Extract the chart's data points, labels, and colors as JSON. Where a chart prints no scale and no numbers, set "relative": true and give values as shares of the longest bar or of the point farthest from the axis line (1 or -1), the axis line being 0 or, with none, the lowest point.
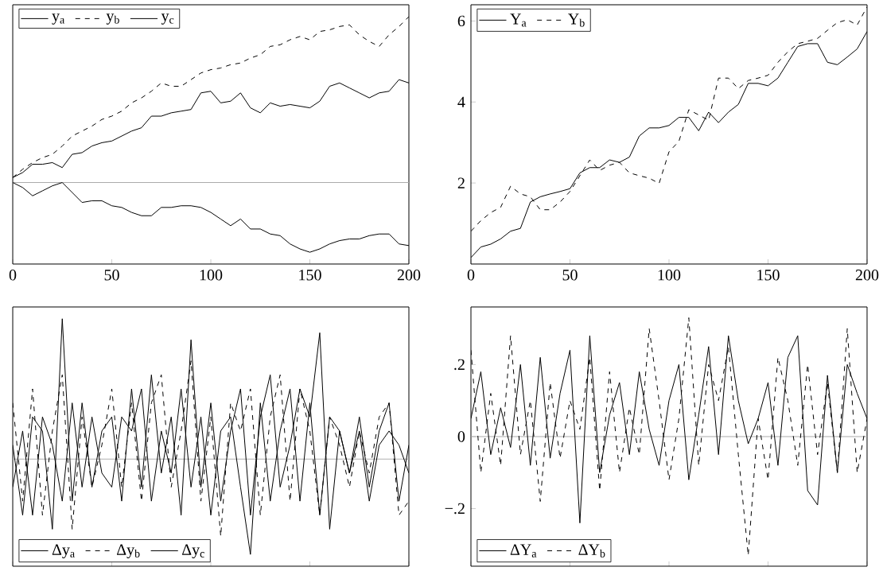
{
  "chart_data": [
    {
      "type": "line",
      "relative": true,
      "x": [
        0,
        5,
        10,
        15,
        20,
        25,
        30,
        35,
        40,
        45,
        50,
        55,
        60,
        65,
        70,
        75,
        80,
        85,
        90,
        95,
        100,
        105,
        110,
        115,
        120,
        125,
        130,
        135,
        140,
        145,
        150,
        155,
        160,
        165,
        170,
        175,
        180,
        185,
        190,
        195,
        200
      ],
      "xlim": [
        0,
        200
      ],
      "xticks": [
        0,
        50,
        100,
        150,
        200
      ],
      "legend": "top left",
      "ref_lines": [
        {
          "axis": "y",
          "value": 0,
          "color": "#aaaaaa"
        }
      ],
      "series": [
        {
          "name": "y$_{a}$",
          "color": "#000000",
          "line_style": "solid",
          "values": [
            0.03,
            0.06,
            0.11,
            0.11,
            0.12,
            0.09,
            0.17,
            0.18,
            0.22,
            0.24,
            0.25,
            0.28,
            0.31,
            0.33,
            0.4,
            0.4,
            0.42,
            0.43,
            0.44,
            0.54,
            0.55,
            0.48,
            0.49,
            0.54,
            0.45,
            0.42,
            0.48,
            0.46,
            0.47,
            0.46,
            0.45,
            0.49,
            0.58,
            0.6,
            0.57,
            0.54,
            0.51,
            0.54,
            0.55,
            0.62,
            0.6
          ]
        },
        {
          "name": "y$_{b}$",
          "color": "#000000",
          "line_style": "dashed",
          "values": [
            0.03,
            0.08,
            0.12,
            0.15,
            0.17,
            0.22,
            0.28,
            0.31,
            0.34,
            0.38,
            0.4,
            0.43,
            0.48,
            0.51,
            0.55,
            0.6,
            0.58,
            0.58,
            0.62,
            0.66,
            0.68,
            0.69,
            0.71,
            0.72,
            0.75,
            0.77,
            0.82,
            0.83,
            0.86,
            0.88,
            0.86,
            0.91,
            0.92,
            0.94,
            0.95,
            0.89,
            0.85,
            0.82,
            0.89,
            0.94,
            1.0
          ]
        },
        {
          "name": "y$_{c}$",
          "color": "#000000",
          "line_style": "solid",
          "values": [
            0,
            -0.03,
            -0.08,
            -0.05,
            -0.02,
            0,
            -0.06,
            -0.12,
            -0.11,
            -0.11,
            -0.14,
            -0.15,
            -0.18,
            -0.2,
            -0.2,
            -0.15,
            -0.15,
            -0.14,
            -0.14,
            -0.15,
            -0.18,
            -0.22,
            -0.26,
            -0.22,
            -0.28,
            -0.28,
            -0.31,
            -0.32,
            -0.37,
            -0.4,
            -0.42,
            -0.4,
            -0.37,
            -0.35,
            -0.34,
            -0.34,
            -0.32,
            -0.31,
            -0.31,
            -0.37,
            -0.38
          ]
        }
      ]
    },
    {
      "type": "line",
      "x": [
        0,
        5,
        10,
        15,
        20,
        25,
        30,
        35,
        40,
        45,
        50,
        55,
        60,
        65,
        70,
        75,
        80,
        85,
        90,
        95,
        100,
        105,
        110,
        115,
        120,
        125,
        130,
        135,
        140,
        145,
        150,
        155,
        160,
        165,
        170,
        175,
        180,
        185,
        190,
        195,
        200
      ],
      "xlim": [
        0,
        200
      ],
      "xticks": [
        0,
        50,
        100,
        150,
        200
      ],
      "ylim": [
        0,
        6.4
      ],
      "yticks": [
        2,
        4,
        6
      ],
      "legend": "top left",
      "series": [
        {
          "name": "Y$_{a}$",
          "color": "#000000",
          "line_style": "solid",
          "values": [
            0.16,
            0.42,
            0.49,
            0.62,
            0.81,
            0.88,
            1.53,
            1.66,
            1.73,
            1.79,
            1.86,
            2.25,
            2.38,
            2.38,
            2.57,
            2.51,
            2.64,
            3.16,
            3.36,
            3.36,
            3.42,
            3.62,
            3.62,
            3.29,
            3.75,
            3.49,
            3.75,
            3.94,
            4.46,
            4.46,
            4.4,
            4.59,
            4.98,
            5.37,
            5.44,
            5.44,
            4.98,
            4.92,
            5.11,
            5.31,
            5.74
          ]
        },
        {
          "name": "Y$_{b}$",
          "color": "#000000",
          "line_style": "dashed",
          "values": [
            0.81,
            1.07,
            1.27,
            1.4,
            1.92,
            1.73,
            1.66,
            1.34,
            1.34,
            1.53,
            1.79,
            2.18,
            2.57,
            2.31,
            2.44,
            2.51,
            2.25,
            2.18,
            2.12,
            1.99,
            2.77,
            3.03,
            3.81,
            3.68,
            3.55,
            4.59,
            4.59,
            4.33,
            4.53,
            4.59,
            4.66,
            4.98,
            5.24,
            5.44,
            5.5,
            5.57,
            5.77,
            5.96,
            6.03,
            5.9,
            6.35
          ]
        }
      ]
    },
    {
      "type": "line",
      "relative": true,
      "x": [
        0,
        5,
        10,
        15,
        20,
        25,
        30,
        35,
        40,
        45,
        50,
        55,
        60,
        65,
        70,
        75,
        80,
        85,
        90,
        95,
        100,
        105,
        110,
        115,
        120,
        125,
        130,
        135,
        140,
        145,
        150,
        155,
        160,
        165,
        170,
        175,
        180,
        185,
        190,
        195,
        200
      ],
      "xlim": [
        0,
        200
      ],
      "xticks": [
        0,
        50,
        100,
        150,
        200
      ],
      "tick_labels": false,
      "legend": "bottom left",
      "ref_lines": [
        {
          "axis": "y",
          "value": 0,
          "color": "#aaaaaa"
        }
      ],
      "series": [
        {
          "name": "Δy$_{a}$",
          "color": "#000000",
          "line_style": "solid",
          "values": [
            0.1,
            -0.4,
            0.3,
            0.2,
            -0.5,
            1.0,
            -0.3,
            0.4,
            -0.2,
            0.2,
            0.3,
            -0.3,
            0.5,
            -0.2,
            0.6,
            -0.1,
            0.3,
            -0.4,
            0.85,
            -0.2,
            0.4,
            -0.3,
            0.2,
            0.5,
            -0.4,
            0.3,
            0.6,
            -0.2,
            0.1,
            0.5,
            0.3,
            0.9,
            -0.5,
            0.2,
            -0.1,
            0.3,
            -0.2,
            0.2,
            0.4,
            -0.3,
            0.1
          ]
        },
        {
          "name": "Δy$_{b}$",
          "color": "#000000",
          "line_style": "dashed",
          "values": [
            0.4,
            -0.3,
            0.5,
            -0.4,
            0.2,
            0.6,
            -0.5,
            0.3,
            -0.2,
            0.1,
            0.5,
            -0.2,
            0.4,
            -0.3,
            0.4,
            0.6,
            -0.2,
            0.2,
            0.7,
            -0.3,
            0.3,
            -0.55,
            0.4,
            0.2,
            0.5,
            -0.4,
            0.3,
            0.6,
            -0.3,
            0.5,
            0.2,
            -0.4,
            0.3,
            0.1,
            -0.2,
            0.2,
            -0.1,
            0.3,
            0.4,
            -0.4,
            -0.3
          ]
        },
        {
          "name": "Δy$_{c}$",
          "color": "#000000",
          "line_style": "solid",
          "values": [
            -0.2,
            0.2,
            -0.4,
            0.3,
            0.1,
            -0.3,
            0.4,
            -0.2,
            0.3,
            -0.1,
            -0.2,
            0.3,
            0.2,
            0.5,
            -0.3,
            0.2,
            -0.1,
            0.5,
            -0.2,
            0.3,
            -0.4,
            0.2,
            0.3,
            -0.2,
            -0.68,
            0.4,
            -0.3,
            0.2,
            0.5,
            -0.3,
            0.4,
            -0.4,
            0.3,
            0.2,
            -0.1,
            0.2,
            -0.3,
            0.1,
            0.2,
            0.1,
            -0.1
          ]
        }
      ]
    },
    {
      "type": "line",
      "x": [
        0,
        5,
        10,
        15,
        20,
        25,
        30,
        35,
        40,
        45,
        50,
        55,
        60,
        65,
        70,
        75,
        80,
        85,
        90,
        95,
        100,
        105,
        110,
        115,
        120,
        125,
        130,
        135,
        140,
        145,
        150,
        155,
        160,
        165,
        170,
        175,
        180,
        185,
        190,
        195,
        200
      ],
      "xlim": [
        0,
        200
      ],
      "xticks": [
        0,
        50,
        100,
        150,
        200
      ],
      "ylim": [
        -0.36,
        0.36
      ],
      "yticks": [
        {
          "value": -0.2,
          "label": "−.2"
        },
        0,
        {
          "value": 0.2,
          "label": ".2"
        }
      ],
      "tick_labels": "y",
      "legend": "bottom left",
      "ref_lines": [
        {
          "axis": "y",
          "value": 0,
          "color": "#aaaaaa"
        }
      ],
      "series": [
        {
          "name": "ΔY$_{a}$",
          "color": "#000000",
          "line_style": "solid",
          "values": [
            0.05,
            0.18,
            -0.05,
            0.08,
            -0.03,
            0.2,
            -0.08,
            0.22,
            -0.06,
            0.12,
            0.24,
            -0.24,
            0.28,
            -0.1,
            0.06,
            0.15,
            -0.05,
            0.18,
            0.02,
            -0.08,
            0.1,
            0.2,
            -0.12,
            0.06,
            0.25,
            -0.05,
            0.28,
            0.1,
            -0.02,
            0.05,
            0.15,
            -0.08,
            0.22,
            0.28,
            -0.15,
            -0.19,
            0.17,
            -0.1,
            0.2,
            0.12,
            0.05
          ]
        },
        {
          "name": "ΔY$_{b}$",
          "color": "#000000",
          "line_style": "dashed",
          "values": [
            0.24,
            -0.1,
            0.12,
            -0.08,
            0.28,
            -0.05,
            0.1,
            -0.18,
            0.15,
            -0.06,
            0.1,
            0.02,
            0.22,
            -0.15,
            0.18,
            -0.1,
            0.08,
            -0.05,
            0.3,
            0.1,
            -0.12,
            0.05,
            0.33,
            -0.08,
            0.2,
            0.1,
            0.25,
            -0.05,
            -0.33,
            0.05,
            -0.12,
            0.22,
            0.1,
            -0.08,
            0.2,
            -0.05,
            0.15,
            -0.1,
            0.3,
            -0.1,
            0.05
          ]
        }
      ]
    }
  ]
}
